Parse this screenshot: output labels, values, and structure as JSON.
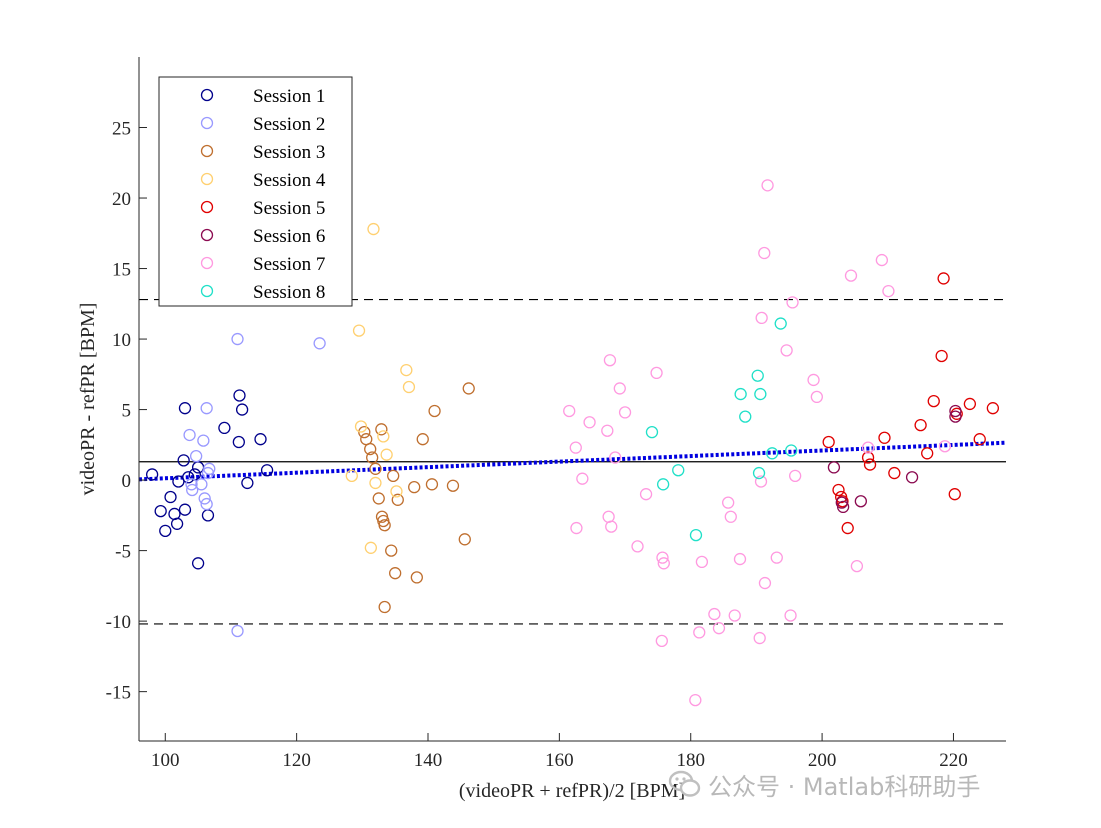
{
  "chart_data": {
    "type": "scatter",
    "title": "",
    "xlabel": "(videoPR + refPR)/2 [BPM]",
    "ylabel": "videoPR - refPR [BPM]",
    "xlim": [
      96,
      228
    ],
    "ylim": [
      -18.5,
      30
    ],
    "xticks": [
      100,
      120,
      140,
      160,
      180,
      200,
      220
    ],
    "yticks": [
      -15,
      -10,
      -5,
      0,
      5,
      10,
      15,
      20,
      25
    ],
    "mean_line": 1.3,
    "upper_limit": 12.8,
    "lower_limit": -10.2,
    "trend_line": {
      "x": [
        96,
        228
      ],
      "y": [
        0.05,
        2.65
      ]
    },
    "legend_position": "top-left",
    "series": [
      {
        "name": "Session 1",
        "color": "#00008B",
        "points": [
          [
            98,
            0.4
          ],
          [
            99.3,
            -2.2
          ],
          [
            100,
            -3.6
          ],
          [
            100.8,
            -1.2
          ],
          [
            101.4,
            -2.4
          ],
          [
            101.8,
            -3.1
          ],
          [
            102,
            -0.1
          ],
          [
            102.8,
            1.4
          ],
          [
            103,
            -2.1
          ],
          [
            103.5,
            0.2
          ],
          [
            103,
            5.1
          ],
          [
            104.5,
            0.4
          ],
          [
            105,
            0.9
          ],
          [
            105,
            -5.9
          ],
          [
            106.5,
            -2.5
          ],
          [
            109,
            3.7
          ],
          [
            111.2,
            2.7
          ],
          [
            111.3,
            6
          ],
          [
            111.7,
            5
          ],
          [
            112.5,
            -0.2
          ],
          [
            114.5,
            2.9
          ],
          [
            115.5,
            0.7
          ]
        ]
      },
      {
        "name": "Session 2",
        "color": "#9999FF",
        "points": [
          [
            103.7,
            3.2
          ],
          [
            104,
            -0.3
          ],
          [
            104.1,
            -0.7
          ],
          [
            104.7,
            1.7
          ],
          [
            105.5,
            -0.3
          ],
          [
            105.8,
            2.8
          ],
          [
            106,
            -1.3
          ],
          [
            106.3,
            -1.7
          ],
          [
            106.3,
            5.1
          ],
          [
            106.5,
            0.5
          ],
          [
            106.7,
            0.8
          ],
          [
            111,
            10
          ],
          [
            111,
            -10.7
          ],
          [
            123.5,
            9.7
          ]
        ]
      },
      {
        "name": "Session 3",
        "color": "#BF6F2F",
        "points": [
          [
            130.3,
            3.4
          ],
          [
            130.6,
            2.9
          ],
          [
            131.2,
            2.2
          ],
          [
            131.5,
            1.6
          ],
          [
            132,
            0.8
          ],
          [
            132.5,
            -1.3
          ],
          [
            132.9,
            3.6
          ],
          [
            133,
            -2.6
          ],
          [
            133.2,
            -2.9
          ],
          [
            133.4,
            -3.2
          ],
          [
            133.4,
            -9
          ],
          [
            134.4,
            -5
          ],
          [
            134.7,
            0.3
          ],
          [
            135,
            -6.6
          ],
          [
            135.4,
            -1.4
          ],
          [
            137.9,
            -0.5
          ],
          [
            138.3,
            -6.9
          ],
          [
            139.2,
            2.9
          ],
          [
            140.6,
            -0.3
          ],
          [
            141,
            4.9
          ],
          [
            143.8,
            -0.4
          ],
          [
            145.6,
            -4.2
          ],
          [
            146.2,
            6.5
          ]
        ]
      },
      {
        "name": "Session 4",
        "color": "#FFD070",
        "points": [
          [
            129.5,
            10.6
          ],
          [
            129.8,
            3.8
          ],
          [
            131.3,
            -4.8
          ],
          [
            131.7,
            17.8
          ],
          [
            132,
            -0.2
          ],
          [
            133.2,
            3.1
          ],
          [
            133.7,
            1.8
          ],
          [
            135.2,
            -0.8
          ],
          [
            136.7,
            7.8
          ],
          [
            137.1,
            6.6
          ],
          [
            128.4,
            0.3
          ]
        ]
      },
      {
        "name": "Session 5",
        "color": "#E00000",
        "points": [
          [
            201,
            2.7
          ],
          [
            202.5,
            -0.7
          ],
          [
            202.9,
            -1.2
          ],
          [
            203.1,
            -1.5
          ],
          [
            203.9,
            -3.4
          ],
          [
            207,
            1.6
          ],
          [
            207.3,
            1.1
          ],
          [
            209.5,
            3
          ],
          [
            211,
            0.5
          ],
          [
            215,
            3.9
          ],
          [
            216,
            1.9
          ],
          [
            217,
            5.6
          ],
          [
            218.2,
            8.8
          ],
          [
            218.5,
            14.3
          ],
          [
            220.2,
            -1
          ],
          [
            220.5,
            4.7
          ],
          [
            222.5,
            5.4
          ],
          [
            224,
            2.9
          ],
          [
            226,
            5.1
          ]
        ]
      },
      {
        "name": "Session 6",
        "color": "#8B0A50",
        "points": [
          [
            201.8,
            0.9
          ],
          [
            203,
            -1.6
          ],
          [
            203.2,
            -1.9
          ],
          [
            205.9,
            -1.5
          ],
          [
            213.7,
            0.2
          ],
          [
            220.3,
            4.9
          ],
          [
            220.3,
            4.5
          ]
        ]
      },
      {
        "name": "Session 7",
        "color": "#FF99E0",
        "points": [
          [
            161.5,
            4.9
          ],
          [
            162.5,
            2.3
          ],
          [
            162.6,
            -3.4
          ],
          [
            163.5,
            0.1
          ],
          [
            164.6,
            4.1
          ],
          [
            167.3,
            3.5
          ],
          [
            167.5,
            -2.6
          ],
          [
            167.7,
            8.5
          ],
          [
            167.9,
            -3.3
          ],
          [
            168.5,
            1.6
          ],
          [
            169.2,
            6.5
          ],
          [
            170,
            4.8
          ],
          [
            171.9,
            -4.7
          ],
          [
            173.2,
            -1
          ],
          [
            174.8,
            7.6
          ],
          [
            175.6,
            -11.4
          ],
          [
            175.7,
            -5.5
          ],
          [
            175.9,
            -5.9
          ],
          [
            180.7,
            -15.6
          ],
          [
            181.3,
            -10.8
          ],
          [
            181.7,
            -5.8
          ],
          [
            183.6,
            -9.5
          ],
          [
            184.3,
            -10.5
          ],
          [
            185.7,
            -1.6
          ],
          [
            186.1,
            -2.6
          ],
          [
            186.7,
            -9.6
          ],
          [
            187.5,
            -5.6
          ],
          [
            190.5,
            -11.2
          ],
          [
            190.7,
            -0.1
          ],
          [
            190.8,
            11.5
          ],
          [
            191.2,
            16.1
          ],
          [
            191.3,
            -7.3
          ],
          [
            191.7,
            20.9
          ],
          [
            193.1,
            -5.5
          ],
          [
            194.6,
            9.2
          ],
          [
            195.2,
            -9.6
          ],
          [
            195.5,
            12.6
          ],
          [
            195.9,
            0.3
          ],
          [
            198.7,
            7.1
          ],
          [
            199.2,
            5.9
          ],
          [
            204.4,
            14.5
          ],
          [
            205.3,
            -6.1
          ],
          [
            207,
            2.3
          ],
          [
            209.1,
            15.6
          ],
          [
            210.1,
            13.4
          ],
          [
            218.7,
            2.4
          ]
        ]
      },
      {
        "name": "Session 8",
        "color": "#20E0C8",
        "points": [
          [
            174.1,
            3.4
          ],
          [
            175.8,
            -0.3
          ],
          [
            178.1,
            0.7
          ],
          [
            180.8,
            -3.9
          ],
          [
            187.6,
            6.1
          ],
          [
            188.3,
            4.5
          ],
          [
            190.2,
            7.4
          ],
          [
            190.4,
            0.5
          ],
          [
            190.6,
            6.1
          ],
          [
            192.4,
            1.9
          ],
          [
            193.7,
            11.1
          ],
          [
            195.3,
            2.1
          ]
        ]
      }
    ]
  },
  "watermark": {
    "text": "公众号 · Matlab科研助手",
    "icon": "wechat-icon"
  }
}
